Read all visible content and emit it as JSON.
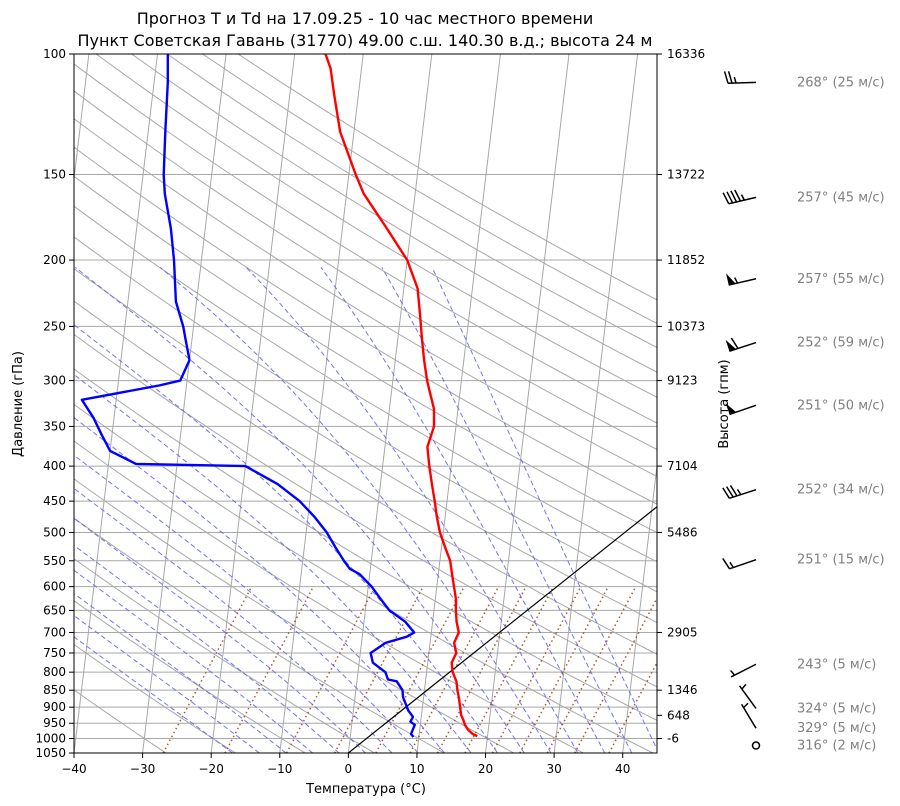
{
  "chart_data": {
    "type": "line",
    "title_line1": "Прогноз T и Td на 17.09.25 - 10 час местного времени",
    "title_line2": "Пункт Советская Гавань (31770) 49.00 с.ш. 140.30 в.д.; высота 24 м",
    "xlabel": "Температура (°C)",
    "ylabel": "Давление (гПа)",
    "ylabel_right": "Высота (гпм)",
    "xlim": [
      -40,
      45
    ],
    "ylim": [
      1050,
      100
    ],
    "y_scale": "log",
    "grid": true,
    "x_ticks": [
      -40,
      -30,
      -20,
      -10,
      0,
      10,
      20,
      30,
      40
    ],
    "p_ticks": [
      100,
      150,
      200,
      250,
      300,
      350,
      400,
      450,
      500,
      550,
      600,
      650,
      700,
      750,
      800,
      850,
      900,
      950,
      1000,
      1050
    ],
    "heights": [
      {
        "p": 100,
        "label": "16336"
      },
      {
        "p": 150,
        "label": "13722"
      },
      {
        "p": 200,
        "label": "11852"
      },
      {
        "p": 250,
        "label": "10373"
      },
      {
        "p": 300,
        "label": "9123"
      },
      {
        "p": 400,
        "label": "7104"
      },
      {
        "p": 500,
        "label": "5486"
      },
      {
        "p": 700,
        "label": "2905"
      },
      {
        "p": 850,
        "label": "1346"
      },
      {
        "p": 925,
        "label": "648"
      },
      {
        "p": 1000,
        "label": "-6"
      }
    ],
    "series": [
      {
        "color": "#ff0000",
        "p": [
          992,
          985,
          970,
          955,
          940,
          925,
          900,
          875,
          850,
          825,
          800,
          775,
          750,
          725,
          700,
          675,
          650,
          625,
          600,
          575,
          550,
          525,
          500,
          475,
          450,
          425,
          400,
          375,
          350,
          330,
          310,
          300,
          280,
          260,
          240,
          220,
          200,
          180,
          160,
          150,
          130,
          115,
          105,
          100
        ],
        "values": [
          18.5,
          17.8,
          17.0,
          16.5,
          16.2,
          15.8,
          15.5,
          15.2,
          14.8,
          14.5,
          13.8,
          13.5,
          14.0,
          13.5,
          14.0,
          13.5,
          13.2,
          13.0,
          12.5,
          12.0,
          11.5,
          10.5,
          9.5,
          8.8,
          8.2,
          7.5,
          6.8,
          6.2,
          6.8,
          6.5,
          5.5,
          5.0,
          4.2,
          3.5,
          2.8,
          2.0,
          0.0,
          -3.5,
          -7.5,
          -9.0,
          -12.0,
          -13.5,
          -14.5,
          -15.5
        ]
      },
      {
        "color": "#0000ff",
        "p": [
          995,
          985,
          970,
          955,
          945,
          930,
          910,
          890,
          870,
          850,
          825,
          820,
          800,
          775,
          750,
          725,
          710,
          700,
          675,
          650,
          625,
          600,
          575,
          565,
          550,
          525,
          500,
          475,
          450,
          425,
          400,
          397,
          380,
          360,
          340,
          320,
          305,
          300,
          280,
          260,
          250,
          230,
          200,
          180,
          160,
          150,
          130,
          110,
          100
        ],
        "values": [
          9.2,
          8.8,
          9.0,
          9.2,
          8.5,
          8.8,
          8.0,
          7.5,
          7.0,
          6.8,
          5.8,
          4.5,
          4.0,
          2.0,
          1.5,
          3.5,
          6.5,
          7.5,
          6.0,
          3.5,
          2.0,
          0.5,
          -1.5,
          -3.0,
          -4.0,
          -5.5,
          -7.0,
          -9.0,
          -11.5,
          -15.0,
          -20.0,
          -36.0,
          -40.0,
          -41.5,
          -43.0,
          -45.0,
          -34.0,
          -31.0,
          -30.0,
          -31.0,
          -31.5,
          -33.0,
          -34.0,
          -35.0,
          -36.5,
          -37.0,
          -37.5,
          -38.0,
          -38.5
        ]
      }
    ],
    "parcel_line": {
      "start": [
        0,
        1050
      ],
      "end": [
        51,
        372
      ]
    },
    "wind_labels": [
      {
        "p": 110,
        "text": "268° (25 м/с)"
      },
      {
        "p": 162,
        "text": "257° (45 м/с)"
      },
      {
        "p": 213,
        "text": "257° (55 м/с)"
      },
      {
        "p": 264,
        "text": "252° (59 м/с)"
      },
      {
        "p": 326,
        "text": "251° (50 м/с)"
      },
      {
        "p": 433,
        "text": "252° (34 м/с)"
      },
      {
        "p": 548,
        "text": "251° (15 м/с)"
      },
      {
        "p": 779,
        "text": "243° (5 м/с)"
      },
      {
        "p": 904,
        "text": "324° (5 м/с)"
      },
      {
        "p": 966,
        "text": "329° (5 м/с)"
      },
      {
        "p": 1024,
        "text": "316° (2 м/с)"
      }
    ]
  }
}
